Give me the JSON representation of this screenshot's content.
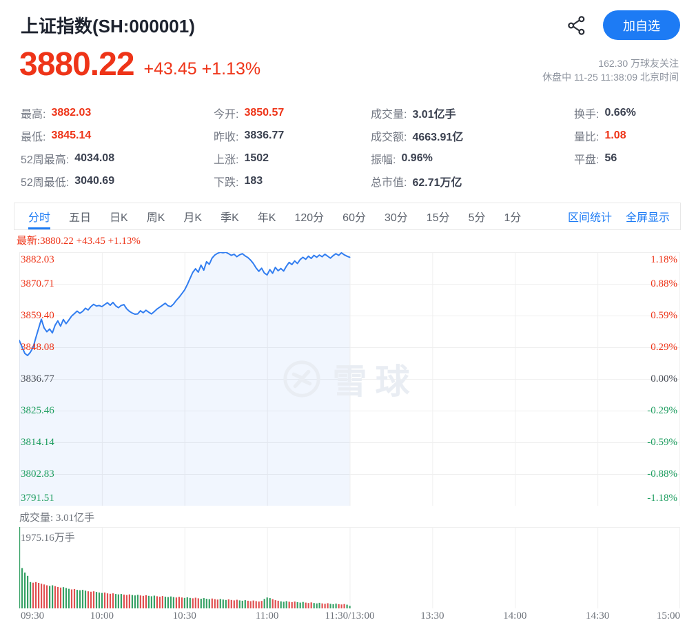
{
  "header": {
    "title": "上证指数(SH:000001)",
    "add_watchlist_label": "加自选"
  },
  "quote": {
    "price": "3880.22",
    "change": "+43.45",
    "change_pct": "+1.13%",
    "followers": "162.30 万球友关注",
    "status_line": "休盘中 11-25 11:38:09 北京时间"
  },
  "stats": {
    "columns": [
      [
        {
          "label": "最高:",
          "value": "3882.03",
          "red": true
        },
        {
          "label": "最低:",
          "value": "3845.14",
          "red": true
        },
        {
          "label": "52周最高:",
          "value": "4034.08",
          "red": false
        },
        {
          "label": "52周最低:",
          "value": "3040.69",
          "red": false
        }
      ],
      [
        {
          "label": "今开:",
          "value": "3850.57",
          "red": true
        },
        {
          "label": "昨收:",
          "value": "3836.77",
          "red": false
        },
        {
          "label": "上涨:",
          "value": "1502",
          "red": false
        },
        {
          "label": "下跌:",
          "value": "183",
          "red": false
        }
      ],
      [
        {
          "label": "成交量:",
          "value": "3.01亿手",
          "red": false
        },
        {
          "label": "成交额:",
          "value": "4663.91亿",
          "red": false
        },
        {
          "label": "振幅:",
          "value": "0.96%",
          "red": false
        },
        {
          "label": "总市值:",
          "value": "62.71万亿",
          "red": false
        }
      ],
      [
        {
          "label": "换手:",
          "value": "0.66%",
          "red": false
        },
        {
          "label": "量比:",
          "value": "1.08",
          "red": true
        },
        {
          "label": "平盘:",
          "value": "56",
          "red": false
        }
      ]
    ]
  },
  "tabs": {
    "items": [
      {
        "label": "分时",
        "active": true
      },
      {
        "label": "五日",
        "active": false
      },
      {
        "label": "日K",
        "active": false
      },
      {
        "label": "周K",
        "active": false
      },
      {
        "label": "月K",
        "active": false
      },
      {
        "label": "季K",
        "active": false
      },
      {
        "label": "年K",
        "active": false
      },
      {
        "label": "120分",
        "active": false
      },
      {
        "label": "60分",
        "active": false
      },
      {
        "label": "30分",
        "active": false
      },
      {
        "label": "15分",
        "active": false
      },
      {
        "label": "5分",
        "active": false
      },
      {
        "label": "1分",
        "active": false
      }
    ],
    "links": [
      "区间统计",
      "全屏显示"
    ]
  },
  "chart_data": {
    "type": "line",
    "title": "上证指数分时图",
    "latest_text": "最新:3880.22 +43.45 +1.13%",
    "watermark": "雪球",
    "price_axis": {
      "max": 3882.03,
      "min": 3791.51,
      "prev_close": 3836.77
    },
    "y_axis_price_labels": [
      {
        "t": "3882.03",
        "cls": "up"
      },
      {
        "t": "3870.71",
        "cls": "up"
      },
      {
        "t": "3859.40",
        "cls": "up"
      },
      {
        "t": "3848.08",
        "cls": "up"
      },
      {
        "t": "3836.77",
        "cls": "flat"
      },
      {
        "t": "3825.46",
        "cls": "down"
      },
      {
        "t": "3814.14",
        "cls": "down"
      },
      {
        "t": "3802.83",
        "cls": "down"
      },
      {
        "t": "3791.51",
        "cls": "down"
      }
    ],
    "y_axis_pct_labels": [
      {
        "t": "1.18%",
        "cls": "up"
      },
      {
        "t": "0.88%",
        "cls": "up"
      },
      {
        "t": "0.59%",
        "cls": "up"
      },
      {
        "t": "0.29%",
        "cls": "up"
      },
      {
        "t": "0.00%",
        "cls": "flat"
      },
      {
        "t": "-0.29%",
        "cls": "down"
      },
      {
        "t": "-0.59%",
        "cls": "down"
      },
      {
        "t": "-0.88%",
        "cls": "down"
      },
      {
        "t": "-1.18%",
        "cls": "down"
      }
    ],
    "x_axis_labels": [
      "09:30",
      "10:00",
      "10:30",
      "11:00",
      "11:30/13:00",
      "13:30",
      "14:00",
      "14:30",
      "15:00"
    ],
    "x_axis_minutes": [
      0,
      30,
      60,
      90,
      120,
      150,
      180,
      210,
      240
    ],
    "session_minutes_total": 240,
    "traded_minutes": 120,
    "price_points": [
      3850.5,
      3848.2,
      3845.9,
      3845.14,
      3846.3,
      3848.0,
      3851.5,
      3854.8,
      3858.1,
      3855.0,
      3853.6,
      3854.6,
      3853.2,
      3855.9,
      3857.5,
      3855.6,
      3858.0,
      3856.5,
      3857.8,
      3859.2,
      3860.1,
      3861.0,
      3860.2,
      3860.9,
      3862.0,
      3861.4,
      3862.6,
      3863.4,
      3862.8,
      3863.0,
      3862.6,
      3863.3,
      3864.0,
      3863.1,
      3864.1,
      3862.9,
      3862.2,
      3863.0,
      3863.3,
      3861.8,
      3860.9,
      3860.3,
      3859.9,
      3860.0,
      3861.1,
      3860.4,
      3861.3,
      3860.6,
      3860.0,
      3860.8,
      3861.7,
      3862.4,
      3863.1,
      3863.8,
      3862.9,
      3862.6,
      3863.5,
      3864.8,
      3865.9,
      3867.2,
      3868.5,
      3870.4,
      3872.6,
      3874.8,
      3876.1,
      3874.9,
      3877.4,
      3875.6,
      3878.6,
      3877.7,
      3879.9,
      3881.0,
      3881.6,
      3882.0,
      3881.8,
      3882.03,
      3881.5,
      3880.9,
      3881.3,
      3880.4,
      3881.1,
      3881.5,
      3880.7,
      3880.1,
      3879.2,
      3878.0,
      3876.4,
      3875.2,
      3876.3,
      3874.6,
      3873.9,
      3875.8,
      3874.5,
      3876.6,
      3875.4,
      3876.2,
      3875.3,
      3877.0,
      3878.4,
      3877.6,
      3878.9,
      3878.0,
      3879.4,
      3880.2,
      3879.5,
      3880.6,
      3879.8,
      3880.9,
      3880.2,
      3881.0,
      3880.4,
      3881.3,
      3880.6,
      3879.9,
      3880.8,
      3881.5,
      3880.9,
      3881.8,
      3881.1,
      3880.6,
      3880.22
    ],
    "volume_label": "成交量: 3.01亿手",
    "volume_max_label": "1975.16万手",
    "volume_max": 1975.16,
    "volume_points": [
      1975,
      980,
      870,
      790,
      640,
      625,
      640,
      620,
      600,
      580,
      560,
      545,
      560,
      540,
      520,
      505,
      515,
      495,
      475,
      460,
      470,
      450,
      440,
      450,
      430,
      415,
      405,
      415,
      400,
      385,
      375,
      385,
      365,
      355,
      365,
      350,
      340,
      350,
      335,
      325,
      340,
      325,
      315,
      330,
      315,
      305,
      320,
      305,
      295,
      310,
      295,
      285,
      300,
      285,
      275,
      290,
      275,
      265,
      280,
      265,
      255,
      270,
      255,
      245,
      260,
      245,
      235,
      250,
      235,
      225,
      240,
      225,
      215,
      230,
      215,
      205,
      220,
      205,
      195,
      210,
      195,
      185,
      200,
      185,
      175,
      190,
      175,
      165,
      180,
      230,
      265,
      250,
      225,
      200,
      185,
      170,
      160,
      175,
      160,
      150,
      165,
      150,
      140,
      155,
      140,
      130,
      145,
      130,
      120,
      135,
      120,
      110,
      125,
      110,
      100,
      115,
      100,
      95,
      105,
      90,
      60
    ],
    "volume_color_runs": [
      [
        "u",
        5
      ],
      [
        "d",
        6
      ],
      [
        "u",
        2
      ],
      [
        "d",
        3
      ],
      [
        "u",
        3
      ],
      [
        "d",
        2
      ],
      [
        "u",
        4
      ],
      [
        "d",
        3
      ],
      [
        "u",
        3
      ],
      [
        "d",
        4
      ],
      [
        "u",
        3
      ],
      [
        "d",
        3
      ],
      [
        "u",
        3
      ],
      [
        "d",
        3
      ],
      [
        "u",
        3
      ],
      [
        "d",
        3
      ],
      [
        "u",
        4
      ],
      [
        "d",
        3
      ],
      [
        "u",
        3
      ],
      [
        "d",
        3
      ],
      [
        "u",
        4
      ],
      [
        "d",
        3
      ],
      [
        "u",
        3
      ],
      [
        "d",
        4
      ],
      [
        "u",
        3
      ],
      [
        "d",
        6
      ],
      [
        "u",
        3
      ],
      [
        "d",
        3
      ],
      [
        "u",
        3
      ],
      [
        "d",
        3
      ],
      [
        "u",
        3
      ],
      [
        "d",
        3
      ],
      [
        "u",
        3
      ],
      [
        "d",
        3
      ],
      [
        "u",
        3
      ],
      [
        "d",
        3
      ],
      [
        "u",
        2
      ]
    ],
    "colors": {
      "up": "#ee3418",
      "down": "#1e9e60",
      "flat": "#474c55",
      "line": "#317df0",
      "fill": "rgba(49,125,240,0.065)",
      "bar_up": "#36a165",
      "bar_down": "#e05050",
      "grid": "#efefef",
      "accent_blue": "#1d7bf4",
      "watermark": "#e9edf3"
    }
  }
}
